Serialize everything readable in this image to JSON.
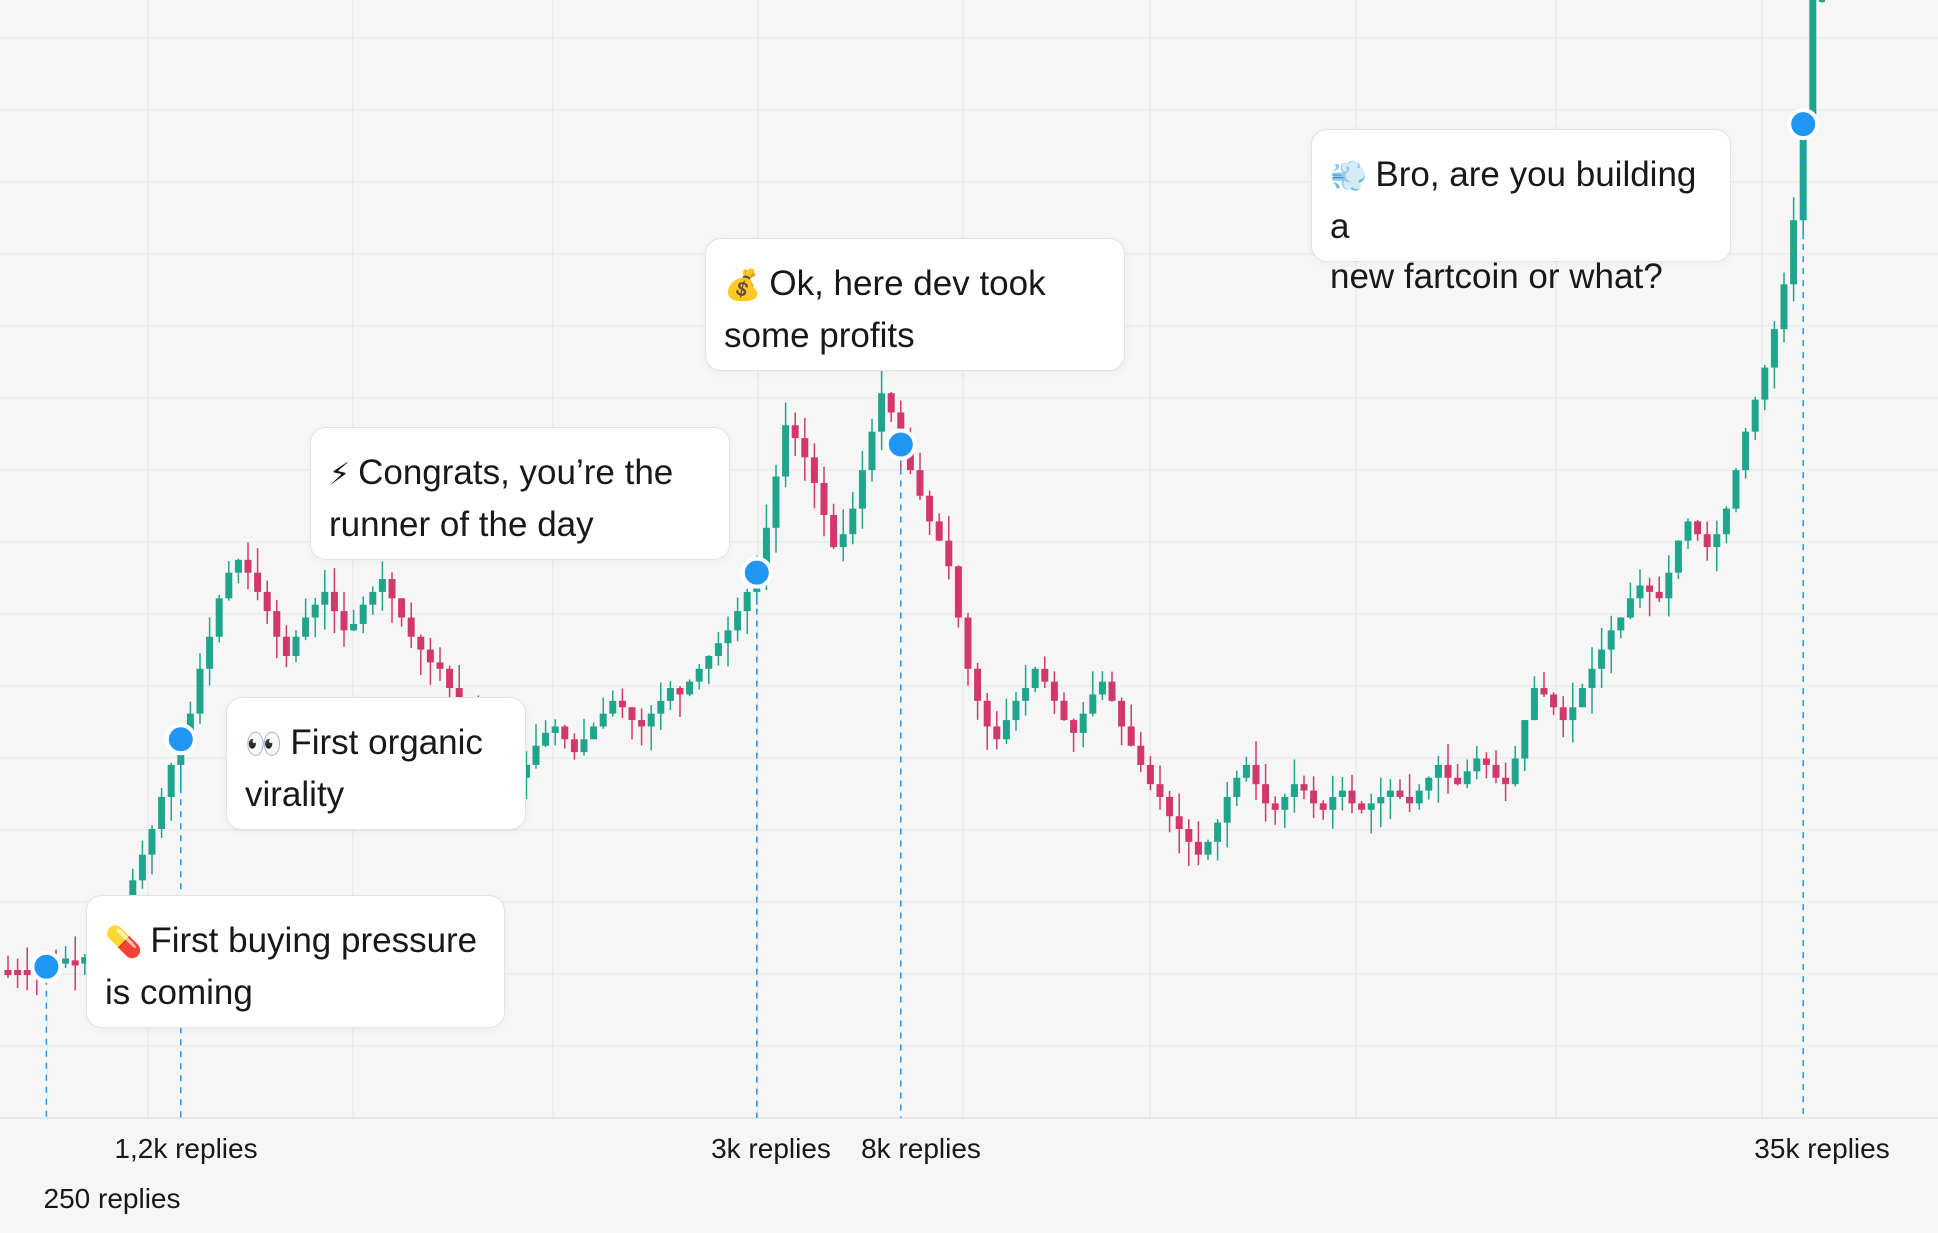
{
  "colors": {
    "up": "#1fa58c",
    "down": "#d2386c",
    "marker": "#2196f3",
    "grid": "#e4e5e8"
  },
  "callouts": [
    {
      "icon": "pill-icon",
      "glyph": "💊",
      "text_line1": "First buying pressure",
      "text_line2": "is coming"
    },
    {
      "icon": "eyes-icon",
      "glyph": "👀",
      "text_line1": "First organic",
      "text_line2": "virality"
    },
    {
      "icon": "lightning-icon",
      "glyph": "⚡",
      "text_line1": "Congrats, you’re the",
      "text_line2": "runner of the day"
    },
    {
      "icon": "money-bag-icon",
      "glyph": "💰",
      "text_line1": "Ok, here dev took",
      "text_line2": "some profits"
    },
    {
      "icon": "wind-icon",
      "glyph": "💨",
      "text_line1": "Bro, are you building a",
      "text_line2": "new fartcoin or what?"
    }
  ],
  "chart_data": {
    "type": "candlestick",
    "grid": true,
    "milestones": [
      {
        "label": "250 replies",
        "index": 4
      },
      {
        "label": "1,2k replies",
        "index": 18
      },
      {
        "label": "3k replies",
        "index": 78
      },
      {
        "label": "8k replies",
        "index": 93
      },
      {
        "label": "35k replies",
        "index": 187
      }
    ],
    "closes": [
      8,
      8,
      8,
      8,
      8.5,
      9,
      9.5,
      9,
      10,
      12,
      14,
      16,
      19,
      22,
      26,
      30,
      35,
      40,
      44,
      48,
      55,
      60,
      66,
      70,
      72,
      70,
      67,
      64,
      60,
      57,
      60,
      63,
      65,
      67,
      64,
      61,
      62,
      65,
      67,
      69,
      66,
      63,
      60,
      58,
      56,
      55,
      52,
      50,
      48,
      46,
      44,
      41,
      39,
      38,
      40,
      43,
      45,
      46,
      44,
      42,
      44,
      46,
      48,
      50,
      49,
      47,
      46,
      48,
      50,
      52,
      51,
      53,
      55,
      57,
      59,
      61,
      64,
      67,
      70,
      77,
      85,
      93,
      91,
      88,
      84,
      79,
      74,
      76,
      80,
      86,
      92,
      98,
      95,
      90,
      86,
      82,
      78,
      75,
      71,
      63,
      55,
      50,
      46,
      44,
      47,
      50,
      52,
      55,
      53,
      50,
      47,
      45,
      48,
      51,
      53,
      50,
      46,
      43,
      40,
      37,
      35,
      32,
      30,
      28,
      26,
      28,
      31,
      35,
      38,
      40,
      37,
      34,
      33,
      35,
      37,
      36,
      34,
      33,
      35,
      36,
      34,
      33,
      34,
      35,
      36,
      35,
      34,
      36,
      38,
      40,
      38,
      37,
      39,
      41,
      40,
      38,
      37,
      41,
      47,
      52,
      51,
      49,
      47,
      49,
      52,
      55,
      58,
      61,
      63,
      66,
      68,
      67,
      66,
      70,
      75,
      78,
      76,
      74,
      76,
      80,
      86,
      92,
      97,
      102,
      108,
      115,
      125,
      140,
      160,
      185
    ]
  }
}
